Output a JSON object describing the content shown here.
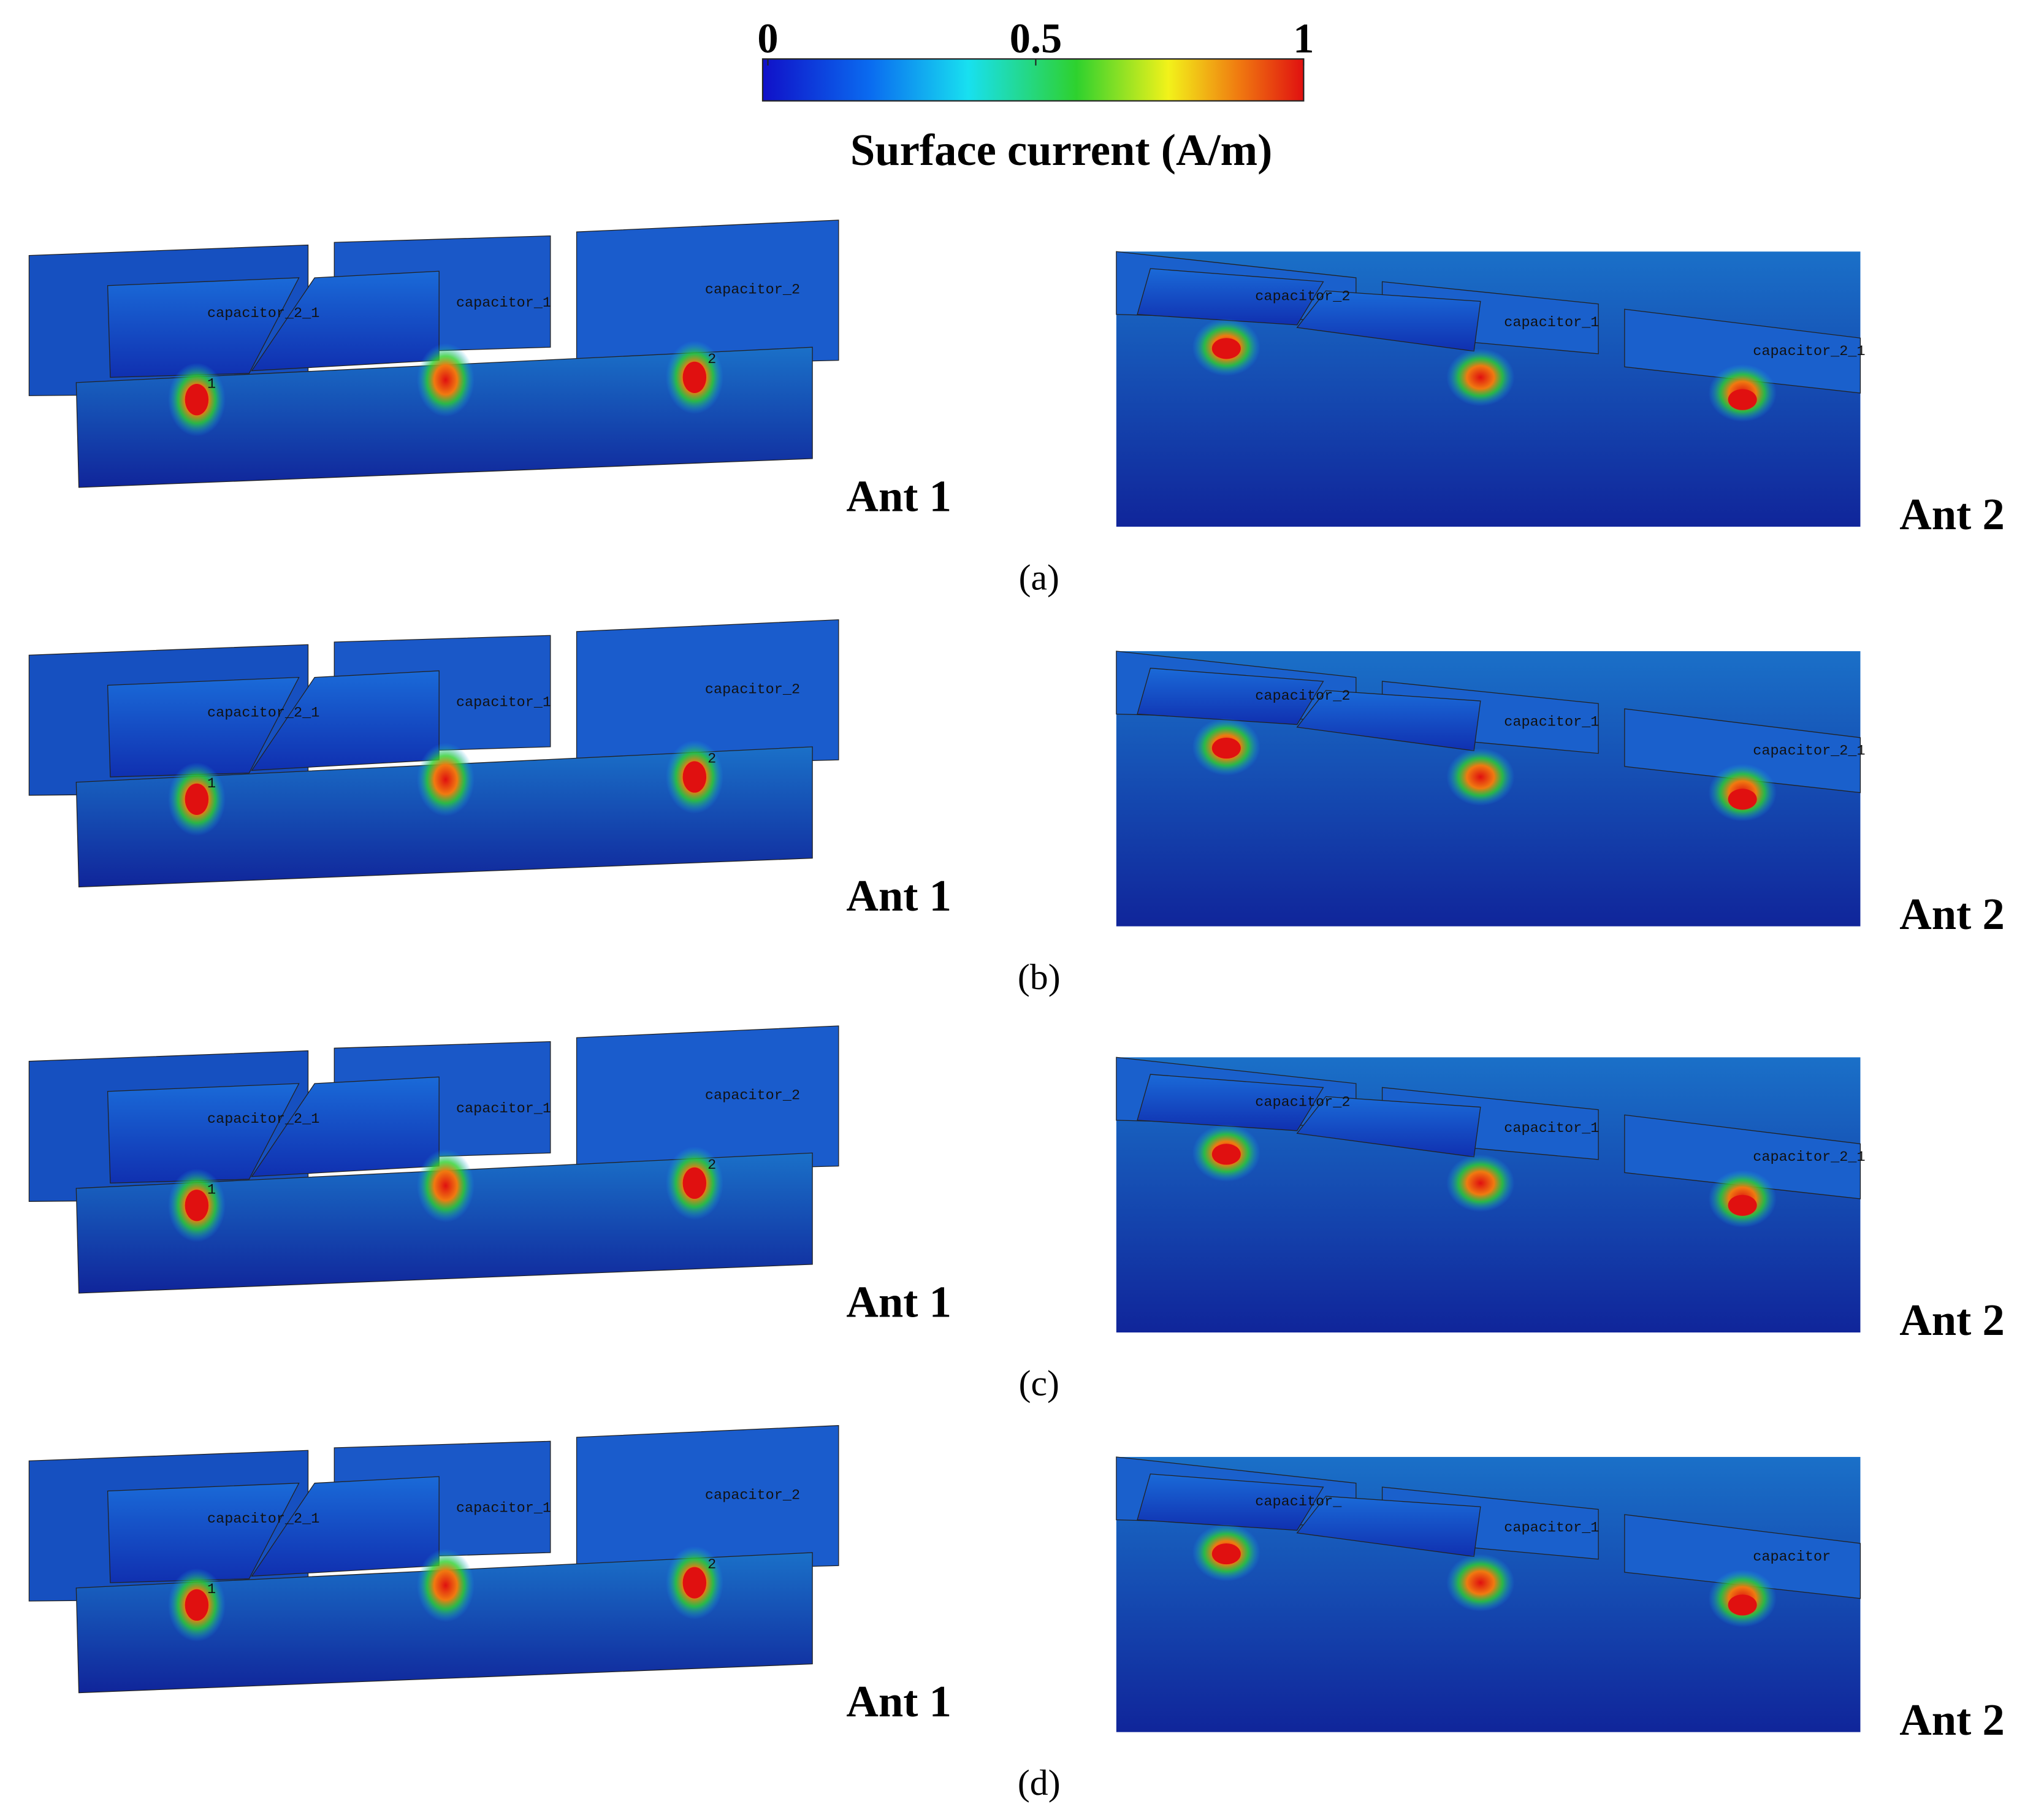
{
  "colorbar": {
    "label": "Surface current (A/m)",
    "lim": [
      0,
      1
    ],
    "ticks": [
      0,
      0.5,
      1
    ]
  },
  "rows": [
    {
      "label": "(a)",
      "ant1": {
        "name": "Ant 1",
        "labels": [
          "capacitor_2_1",
          "capacitor_1",
          "capacitor_2",
          "1",
          "2"
        ]
      },
      "ant2": {
        "name": "Ant 2",
        "labels": [
          "capacitor_2",
          "capacitor_1",
          "capacitor_2_1"
        ]
      }
    },
    {
      "label": "(b)",
      "ant1": {
        "name": "Ant 1",
        "labels": [
          "capacitor_2_1",
          "capacitor_1",
          "capacitor_2",
          "1",
          "2"
        ]
      },
      "ant2": {
        "name": "Ant 2",
        "labels": [
          "capacitor_2",
          "capacitor_1",
          "capacitor_2_1"
        ]
      }
    },
    {
      "label": "(c)",
      "ant1": {
        "name": "Ant 1",
        "labels": [
          "capacitor_2_1",
          "capacitor_1",
          "capacitor_2",
          "1",
          "2"
        ]
      },
      "ant2": {
        "name": "Ant 2",
        "labels": [
          "capacitor_2",
          "capacitor_1",
          "capacitor_2_1"
        ]
      }
    },
    {
      "label": "(d)",
      "ant1": {
        "name": "Ant 1",
        "labels": [
          "capacitor_2_1",
          "capacitor_1",
          "capacitor_2",
          "1",
          "2"
        ]
      },
      "ant2": {
        "name": "Ant 2",
        "labels": [
          "capacitor_",
          "capacitor_1",
          "capacitor"
        ]
      }
    }
  ]
}
